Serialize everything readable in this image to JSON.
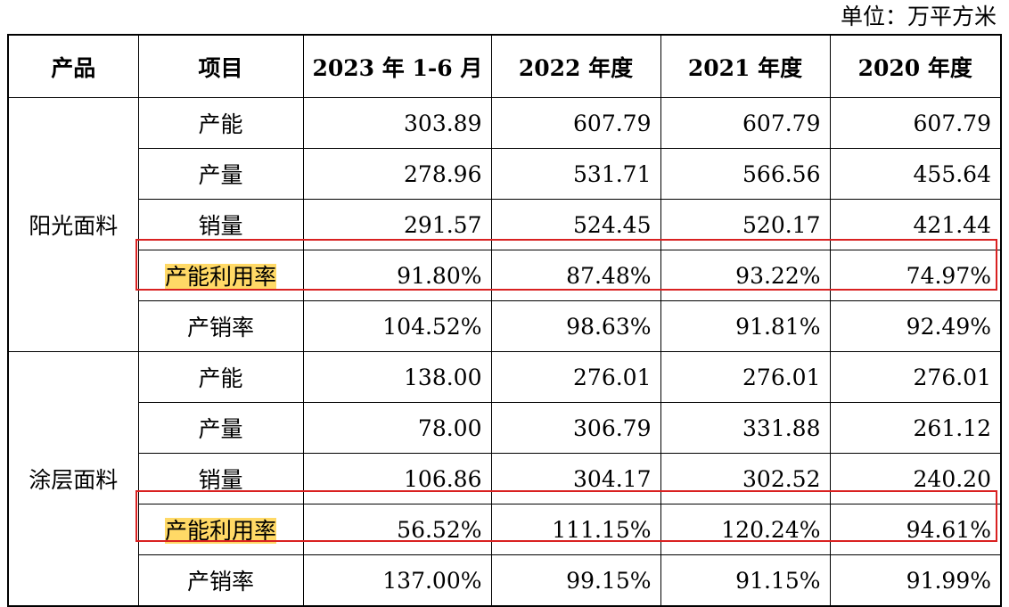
{
  "unit_label": "单位：万平方米",
  "headers": [
    "产品",
    "项目",
    "2023 年 1-6 月",
    "2022 年度",
    "2021 年度",
    "2020 年度"
  ],
  "groups": [
    {
      "product": "阳光面料",
      "rows": [
        {
          "item": "产能",
          "values": [
            "303.89",
            "607.79",
            "607.79",
            "607.79"
          ]
        },
        {
          "item": "产量",
          "values": [
            "278.96",
            "531.71",
            "566.56",
            "455.64"
          ]
        },
        {
          "item": "销量",
          "values": [
            "291.57",
            "524.45",
            "520.17",
            "421.44"
          ]
        },
        {
          "item": "产能利用率",
          "values": [
            "91.80%",
            "87.48%",
            "93.22%",
            "74.97%"
          ]
        },
        {
          "item": "产销率",
          "values": [
            "104.52%",
            "98.63%",
            "91.81%",
            "92.49%"
          ]
        }
      ]
    },
    {
      "product": "涂层面料",
      "rows": [
        {
          "item": "产能",
          "values": [
            "138.00",
            "276.01",
            "276.01",
            "276.01"
          ]
        },
        {
          "item": "产量",
          "values": [
            "78.00",
            "306.79",
            "331.88",
            "261.12"
          ]
        },
        {
          "item": "销量",
          "values": [
            "106.86",
            "304.17",
            "302.52",
            "240.20"
          ]
        },
        {
          "item": "产能利用率",
          "values": [
            "56.52%",
            "111.15%",
            "120.24%",
            "94.61%"
          ]
        },
        {
          "item": "产销率",
          "values": [
            "137.00%",
            "99.15%",
            "91.15%",
            "91.99%"
          ]
        }
      ]
    }
  ],
  "highlight_color": "#ffd966",
  "box_color": "#d92121"
}
